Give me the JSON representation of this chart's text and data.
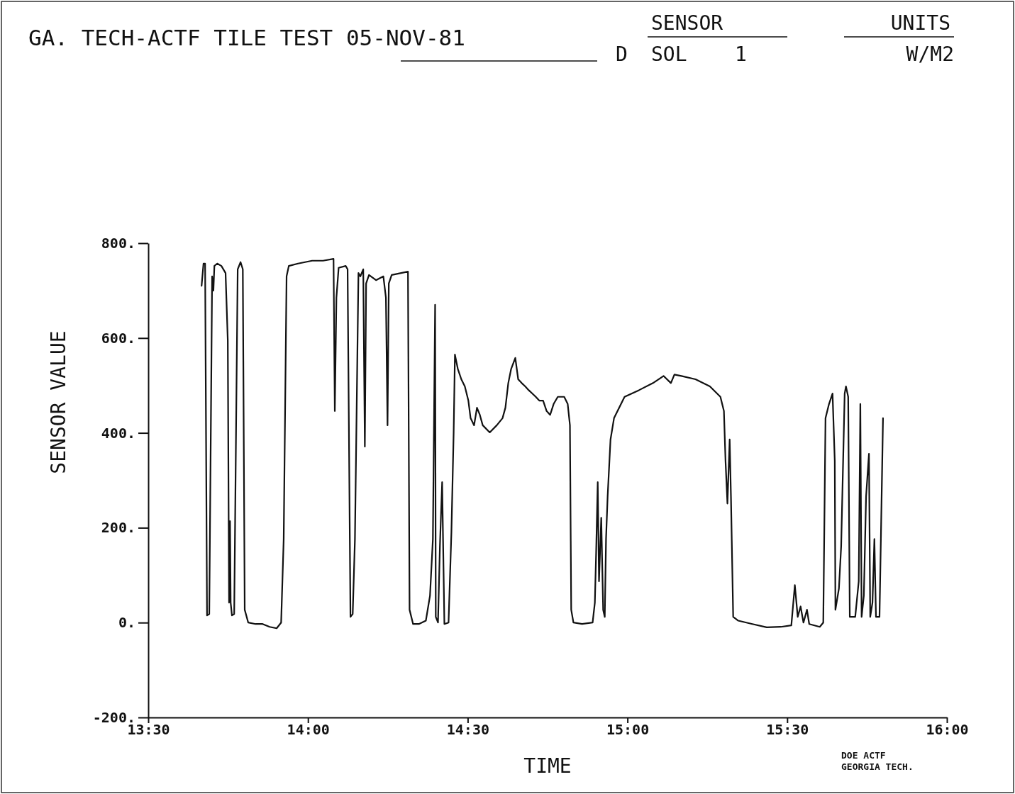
{
  "chart_data": {
    "type": "line",
    "title": "GA. TECH-ACTF TILE TEST 05-NOV-81",
    "xlabel": "TIME",
    "ylabel": "SENSOR VALUE",
    "annotations": [
      "SENSOR",
      "SOL    1",
      "UNITS",
      "W/M2",
      "D",
      "DOE ACTF",
      "GEORGIA TECH."
    ],
    "xlim": [
      13.5,
      16
    ],
    "xticks": [
      {
        "value": 13.5,
        "label": "13:30"
      },
      {
        "value": 14,
        "label": "14:00"
      },
      {
        "value": 14.5,
        "label": "14:30"
      },
      {
        "value": 15,
        "label": "15:00"
      },
      {
        "value": 15.5,
        "label": "15:30"
      },
      {
        "value": 16,
        "label": "16:00"
      }
    ],
    "ylim": [
      -200,
      800
    ],
    "yticks": [
      {
        "value": -200,
        "label": "-200."
      },
      {
        "value": 0,
        "label": "0."
      },
      {
        "value": 200,
        "label": "200."
      },
      {
        "value": 400,
        "label": "400."
      },
      {
        "value": 600,
        "label": "600."
      },
      {
        "value": 800,
        "label": "800."
      }
    ],
    "grid": false,
    "marker": "none",
    "line_style": "solid",
    "series": [
      {
        "color": "#111111",
        "x": [
          13.667,
          13.673,
          13.678,
          13.684,
          13.691,
          13.7,
          13.704,
          13.707,
          13.716,
          13.729,
          13.742,
          13.749,
          13.753,
          13.756,
          13.758,
          13.762,
          13.769,
          13.78,
          13.789,
          13.796,
          13.802,
          13.813,
          13.836,
          13.858,
          13.88,
          13.902,
          13.916,
          13.924,
          13.933,
          13.94,
          13.969,
          14.013,
          14.047,
          14.08,
          14.084,
          14.089,
          14.096,
          14.118,
          14.124,
          14.133,
          14.14,
          14.147,
          14.158,
          14.164,
          14.173,
          14.178,
          14.182,
          14.191,
          14.213,
          14.236,
          14.244,
          14.249,
          14.253,
          14.262,
          14.313,
          14.318,
          14.329,
          14.347,
          14.369,
          14.382,
          14.391,
          14.398,
          14.4,
          14.407,
          14.413,
          14.42,
          14.427,
          14.44,
          14.449,
          14.456,
          14.46,
          14.469,
          14.48,
          14.491,
          14.502,
          14.509,
          14.52,
          14.529,
          14.538,
          14.547,
          14.569,
          14.591,
          14.609,
          14.618,
          14.627,
          14.636,
          14.649,
          14.658,
          14.669,
          14.68,
          14.691,
          14.702,
          14.713,
          14.724,
          14.736,
          14.747,
          14.758,
          14.769,
          14.782,
          14.802,
          14.813,
          14.82,
          14.824,
          14.831,
          14.858,
          14.891,
          14.898,
          14.902,
          14.907,
          14.911,
          14.918,
          14.924,
          14.929,
          14.933,
          14.938,
          14.947,
          14.958,
          14.991,
          15.036,
          15.08,
          15.113,
          15.136,
          15.147,
          15.169,
          15.213,
          15.258,
          15.291,
          15.302,
          15.307,
          15.313,
          15.32,
          15.324,
          15.331,
          15.347,
          15.391,
          15.436,
          15.48,
          15.513,
          15.524,
          15.533,
          15.542,
          15.551,
          15.562,
          15.569,
          15.602,
          15.613,
          15.62,
          15.631,
          15.642,
          15.649,
          15.651,
          15.662,
          15.669,
          15.68,
          15.684,
          15.691,
          15.696,
          15.713,
          15.724,
          15.729,
          15.733,
          15.74,
          15.747,
          15.756,
          15.76,
          15.767,
          15.773,
          15.778,
          15.789,
          15.8
        ],
        "values": [
          710,
          757,
          757,
          15,
          18,
          730,
          700,
          752,
          757,
          752,
          737,
          595,
          42,
          214,
          42,
          15,
          18,
          745,
          760,
          745,
          27,
          0,
          -3,
          -3,
          -9,
          -12,
          0,
          176,
          730,
          752,
          757,
          763,
          763,
          767,
          446,
          685,
          748,
          752,
          745,
          12,
          18,
          176,
          737,
          730,
          745,
          371,
          715,
          733,
          722,
          730,
          685,
          416,
          715,
          733,
          740,
          27,
          -3,
          -3,
          4,
          57,
          176,
          670,
          12,
          0,
          161,
          296,
          -3,
          0,
          191,
          401,
          565,
          535,
          513,
          498,
          468,
          431,
          416,
          453,
          438,
          416,
          401,
          416,
          431,
          453,
          505,
          535,
          558,
          513,
          505,
          498,
          490,
          483,
          476,
          468,
          468,
          446,
          438,
          461,
          476,
          476,
          461,
          416,
          27,
          0,
          -3,
          0,
          42,
          147,
          296,
          87,
          221,
          27,
          12,
          176,
          266,
          386,
          431,
          476,
          490,
          505,
          520,
          505,
          523,
          520,
          513,
          498,
          476,
          446,
          341,
          251,
          386,
          266,
          12,
          4,
          -3,
          -10,
          -9,
          -6,
          79,
          12,
          34,
          0,
          27,
          -3,
          -9,
          0,
          431,
          461,
          483,
          341,
          27,
          72,
          161,
          483,
          498,
          476,
          12,
          12,
          87,
          461,
          12,
          57,
          266,
          356,
          12,
          42,
          176,
          12,
          12,
          431
        ]
      }
    ]
  }
}
